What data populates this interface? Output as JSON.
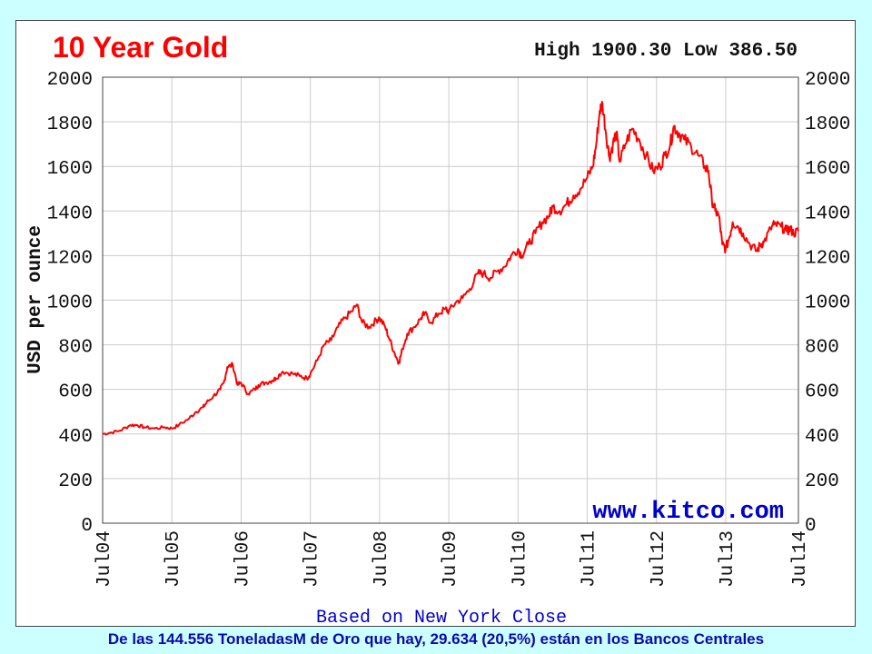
{
  "chart_data": {
    "type": "line",
    "title": "10 Year Gold",
    "stats": "High 1900.30 Low 386.50",
    "ylabel": "USD per ounce",
    "xlabel": "Based on New York Close",
    "watermark": "www.kitco.com",
    "ylim": [
      0,
      2000
    ],
    "yticks": [
      "0",
      "200",
      "400",
      "600",
      "800",
      "1000",
      "1200",
      "1400",
      "1600",
      "1800",
      "2000"
    ],
    "xticks": [
      "Jul04",
      "Jul05",
      "Jul06",
      "Jul07",
      "Jul08",
      "Jul09",
      "Jul10",
      "Jul11",
      "Jul12",
      "Jul13",
      "Jul14"
    ],
    "grid": true,
    "colors": {
      "line": "#ff0000",
      "title": "#ff0000",
      "grid": "#cccccc",
      "watermark": "#0000cc",
      "xlabel": "#0000cc",
      "background": "#ccffff"
    },
    "series": [
      {
        "x": [
          2004.5,
          2004.6,
          2004.75,
          2004.9,
          2005.0,
          2005.1,
          2005.25,
          2005.4,
          2005.5,
          2005.6,
          2005.75,
          2005.85,
          2005.95,
          2006.0,
          2006.1,
          2006.2,
          2006.25,
          2006.3,
          2006.38,
          2006.45,
          2006.5,
          2006.6,
          2006.7,
          2006.75,
          2006.85,
          2006.95,
          2007.0,
          2007.1,
          2007.25,
          2007.35,
          2007.45,
          2007.5,
          2007.6,
          2007.7,
          2007.8,
          2007.9,
          2008.0,
          2008.1,
          2008.17,
          2008.25,
          2008.35,
          2008.45,
          2008.5,
          2008.58,
          2008.65,
          2008.72,
          2008.78,
          2008.83,
          2008.9,
          2009.0,
          2009.1,
          2009.15,
          2009.25,
          2009.35,
          2009.45,
          2009.5,
          2009.6,
          2009.7,
          2009.8,
          2009.92,
          2010.0,
          2010.1,
          2010.2,
          2010.3,
          2010.4,
          2010.5,
          2010.55,
          2010.65,
          2010.75,
          2010.85,
          2010.95,
          2011.0,
          2011.1,
          2011.2,
          2011.3,
          2011.4,
          2011.5,
          2011.58,
          2011.63,
          2011.68,
          2011.72,
          2011.77,
          2011.82,
          2011.87,
          2011.92,
          2011.97,
          2012.05,
          2012.15,
          2012.25,
          2012.35,
          2012.45,
          2012.55,
          2012.62,
          2012.7,
          2012.75,
          2012.82,
          2012.9,
          2013.0,
          2013.1,
          2013.2,
          2013.25,
          2013.3,
          2013.35,
          2013.4,
          2013.45,
          2013.5,
          2013.55,
          2013.6,
          2013.68,
          2013.75,
          2013.85,
          2013.95,
          2014.0,
          2014.05,
          2014.15,
          2014.2,
          2014.3,
          2014.38,
          2014.43,
          2014.48,
          2014.55
        ],
        "values": [
          400,
          405,
          415,
          440,
          440,
          430,
          425,
          430,
          425,
          440,
          470,
          500,
          520,
          540,
          570,
          600,
          630,
          700,
          710,
          620,
          630,
          580,
          600,
          620,
          630,
          640,
          650,
          680,
          670,
          660,
          650,
          670,
          730,
          800,
          820,
          880,
          920,
          950,
          980,
          900,
          880,
          910,
          920,
          880,
          820,
          760,
          720,
          780,
          850,
          880,
          920,
          940,
          900,
          940,
          960,
          950,
          990,
          1010,
          1050,
          1120,
          1120,
          1100,
          1130,
          1150,
          1200,
          1230,
          1200,
          1250,
          1300,
          1350,
          1380,
          1420,
          1400,
          1430,
          1470,
          1500,
          1550,
          1600,
          1700,
          1850,
          1880,
          1750,
          1640,
          1700,
          1750,
          1620,
          1700,
          1770,
          1720,
          1650,
          1580,
          1600,
          1650,
          1700,
          1780,
          1750,
          1720,
          1690,
          1650,
          1600,
          1580,
          1450,
          1400,
          1380,
          1250,
          1230,
          1280,
          1350,
          1330,
          1300,
          1250,
          1220,
          1250,
          1260,
          1320,
          1340,
          1330,
          1310,
          1320,
          1300,
          1310
        ]
      }
    ]
  },
  "caption": "De las 144.556 ToneladasM  de Oro que hay,  29.634  (20,5%) están en los Bancos Centrales"
}
